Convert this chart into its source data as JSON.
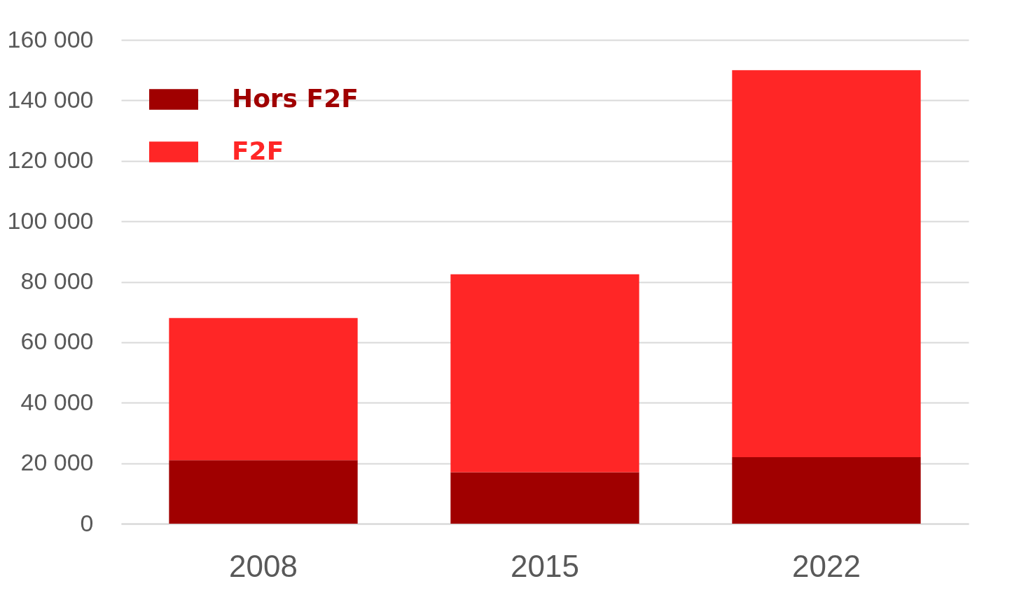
{
  "chart_data": {
    "type": "bar",
    "stacked": true,
    "categories": [
      "2008",
      "2015",
      "2022"
    ],
    "series": [
      {
        "name": "Hors F2F",
        "color": "#a00000",
        "values": [
          21000,
          17000,
          22000
        ]
      },
      {
        "name": "F2F",
        "color": "#ff2626",
        "values": [
          47000,
          65500,
          128000
        ]
      }
    ],
    "ylim": [
      0,
      160000
    ],
    "yticks": [
      {
        "value": 0,
        "label": "0"
      },
      {
        "value": 20000,
        "label": "20 000"
      },
      {
        "value": 40000,
        "label": "40 000"
      },
      {
        "value": 60000,
        "label": "60 000"
      },
      {
        "value": 80000,
        "label": "80 000"
      },
      {
        "value": 100000,
        "label": "100 000"
      },
      {
        "value": 120000,
        "label": "120 000"
      },
      {
        "value": 140000,
        "label": "140 000"
      },
      {
        "value": 160000,
        "label": "160 000"
      }
    ],
    "grid": "y",
    "legend": "top left"
  }
}
